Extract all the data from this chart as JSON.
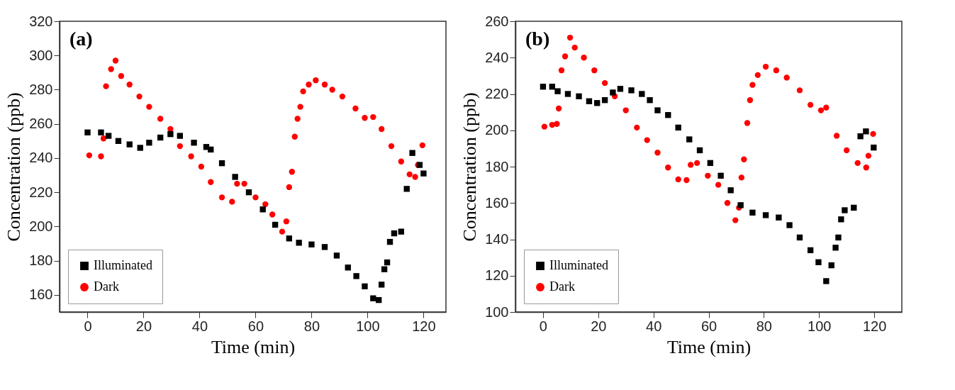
{
  "chart_data": [
    {
      "type": "scatter",
      "xlabel": "Time (min)",
      "ylabel": "Concentration (ppb)",
      "annotations": [
        "(a)"
      ],
      "xlim": [
        -10,
        128
      ],
      "ylim": [
        150,
        320
      ],
      "xticks": [
        0,
        20,
        40,
        60,
        80,
        100,
        120
      ],
      "yticks": [
        160,
        180,
        200,
        220,
        240,
        260,
        280,
        300,
        320
      ],
      "legend": "bottom left",
      "series": [
        {
          "name": "Illuminated",
          "color": "#000000",
          "marker": "square",
          "x": [
            0,
            4.8,
            7.5,
            11,
            15,
            18.8,
            22,
            26,
            29.6,
            33,
            38,
            42.4,
            44,
            48,
            52.7,
            57.6,
            62.6,
            67,
            72,
            75.5,
            80,
            84.7,
            89,
            93,
            96,
            99,
            102,
            104,
            105,
            106,
            107,
            108,
            109.5,
            112,
            114,
            116,
            118.6,
            120
          ],
          "values": [
            255,
            255,
            253,
            250,
            248,
            246,
            249,
            252,
            254,
            253,
            249,
            246.5,
            245,
            237,
            229,
            220,
            210,
            201,
            193,
            190.5,
            189.5,
            188,
            183,
            176,
            171,
            165,
            158,
            157,
            166,
            175,
            179,
            191,
            196,
            197,
            222,
            243,
            236,
            231
          ]
        },
        {
          "name": "Dark",
          "color": "#ff0000",
          "marker": "circle",
          "x": [
            0.6,
            4.8,
            5.7,
            6.6,
            8.4,
            10,
            12,
            15,
            18.5,
            22,
            26,
            29.6,
            33,
            37,
            40.6,
            44,
            48,
            51.6,
            53.4,
            56,
            60,
            63.5,
            66,
            69.5,
            71,
            72,
            73,
            74,
            75,
            76,
            77,
            79,
            81.5,
            84.7,
            87.4,
            91,
            95.7,
            99,
            102,
            105,
            108.5,
            112,
            115,
            117,
            118,
            119.6
          ],
          "values": [
            241.6,
            241,
            251.5,
            282,
            292,
            297,
            288,
            283,
            276,
            270,
            263,
            257,
            247,
            241,
            235,
            226,
            217,
            214.5,
            225,
            225,
            217,
            213,
            207,
            197,
            203,
            223,
            232,
            252.5,
            263,
            270,
            279,
            283,
            285.5,
            283,
            280,
            276,
            269,
            263.5,
            264,
            257,
            247,
            238,
            230.5,
            229,
            236,
            247.5
          ]
        }
      ]
    },
    {
      "type": "scatter",
      "xlabel": "Time (min)",
      "ylabel": "Concentration (ppb)",
      "annotations": [
        "(b)"
      ],
      "xlim": [
        -10,
        130
      ],
      "ylim": [
        100,
        260
      ],
      "xticks": [
        0,
        20,
        40,
        60,
        80,
        100,
        120
      ],
      "yticks": [
        100,
        120,
        140,
        160,
        180,
        200,
        220,
        240,
        260
      ],
      "legend": "bottom left",
      "series": [
        {
          "name": "Illuminated",
          "color": "#000000",
          "marker": "square",
          "x": [
            0,
            3.3,
            5.3,
            9,
            13,
            16.7,
            19.6,
            22.4,
            25.3,
            28,
            32,
            35.8,
            38.7,
            41.5,
            45.3,
            49,
            53,
            56.8,
            60.6,
            64.4,
            68,
            71.6,
            75.9,
            80.7,
            85.4,
            89.3,
            93,
            96.9,
            99.8,
            102.6,
            104.5,
            106,
            107,
            108,
            109.3,
            112.6,
            115,
            117,
            119.8
          ],
          "values": [
            224,
            224,
            221.5,
            220,
            218.7,
            216,
            215,
            216.6,
            220.8,
            222.8,
            222,
            220,
            216.6,
            211,
            208.4,
            201.5,
            195,
            189,
            182,
            175,
            167,
            158.8,
            154.7,
            153.3,
            152,
            147.8,
            141,
            134,
            127.4,
            117,
            125.7,
            135.4,
            141,
            151,
            156,
            157.4,
            196.7,
            199.4,
            190.5
          ]
        },
        {
          "name": "Dark",
          "color": "#ff0000",
          "marker": "circle",
          "x": [
            0.5,
            3.3,
            5,
            5.7,
            6.7,
            8,
            9.8,
            11.5,
            14.8,
            18.6,
            22.4,
            26,
            30,
            34,
            37.7,
            41.5,
            45.3,
            49,
            52,
            53.5,
            55.8,
            59.7,
            63.5,
            66.8,
            69.7,
            71,
            71.9,
            72.8,
            74,
            75,
            75.9,
            77.8,
            80.7,
            84.5,
            88.3,
            93,
            96.9,
            100.7,
            102.6,
            106.4,
            110,
            114,
            117.1,
            117.9,
            119.6
          ],
          "values": [
            202,
            203,
            203.5,
            212,
            233,
            240.7,
            251,
            245.5,
            240,
            233,
            226,
            218.7,
            211,
            201.5,
            194.6,
            187.7,
            179.5,
            173,
            172.6,
            181,
            182,
            175,
            170,
            160,
            150.5,
            157.4,
            174,
            184,
            204,
            216.6,
            225,
            230.4,
            235,
            233,
            229,
            222,
            214,
            211,
            212.5,
            197,
            189,
            182,
            179.5,
            186,
            198
          ]
        }
      ]
    }
  ]
}
